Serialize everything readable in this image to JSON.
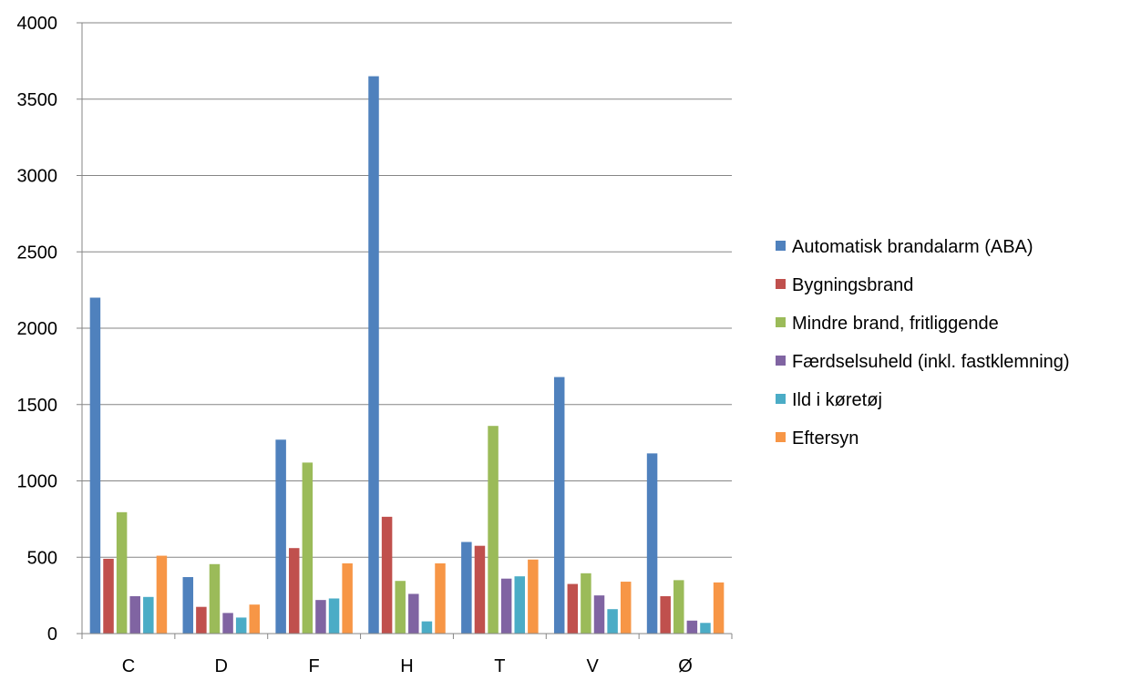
{
  "chart_data": {
    "type": "bar",
    "title": "",
    "xlabel": "",
    "ylabel": "",
    "categories": [
      "C",
      "D",
      "F",
      "H",
      "T",
      "V",
      "Ø"
    ],
    "ylim": [
      0,
      4000
    ],
    "yticks": [
      0,
      500,
      1000,
      1500,
      2000,
      2500,
      3000,
      3500,
      4000
    ],
    "grid": true,
    "legend_position": "right",
    "series": [
      {
        "name": "Automatisk brandalarm (ABA)",
        "color": "#4F81BD",
        "values": [
          2200,
          370,
          1270,
          3650,
          600,
          1680,
          1180
        ]
      },
      {
        "name": "Bygningsbrand",
        "color": "#C0504D",
        "values": [
          490,
          175,
          560,
          765,
          575,
          325,
          245
        ]
      },
      {
        "name": "Mindre brand, fritliggende",
        "color": "#9BBB59",
        "values": [
          795,
          455,
          1120,
          345,
          1360,
          395,
          350
        ]
      },
      {
        "name": "Færdselsuheld (inkl. fastklemning)",
        "color": "#8064A2",
        "values": [
          245,
          135,
          220,
          260,
          360,
          250,
          85
        ]
      },
      {
        "name": "Ild i køretøj",
        "color": "#4BACC6",
        "values": [
          240,
          105,
          230,
          80,
          375,
          160,
          70
        ]
      },
      {
        "name": "Eftersyn",
        "color": "#F79646",
        "values": [
          510,
          190,
          460,
          460,
          485,
          340,
          335
        ]
      }
    ]
  }
}
